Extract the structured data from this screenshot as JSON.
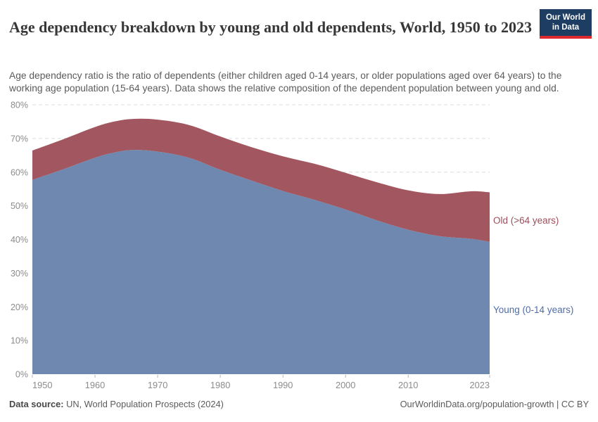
{
  "header": {
    "title": "Age dependency breakdown by young and old dependents, World, 1950 to 2023",
    "subtitle": "Age dependency ratio is the ratio of dependents (either children aged 0-14 years, or older populations aged over 64 years) to the working age population (15-64 years). Data shows the relative composition of the dependent population between young and old.",
    "logo": {
      "line1": "Our World",
      "line2": "in Data"
    }
  },
  "footer": {
    "source_label": "Data source:",
    "source_text": " UN, World Population Prospects (2024)",
    "rights": "OurWorldinData.org/population-growth | CC BY"
  },
  "chart_data": {
    "type": "area",
    "stacked": true,
    "x": [
      1950,
      1955,
      1960,
      1963,
      1966,
      1970,
      1975,
      1980,
      1985,
      1990,
      1995,
      2000,
      2005,
      2010,
      2015,
      2020,
      2023
    ],
    "series": [
      {
        "name": "Young (0-14 years)",
        "color": "#6e88b0",
        "label_color": "#4f6cab",
        "values": [
          57.7,
          60.9,
          64.3,
          65.8,
          66.6,
          66.1,
          64.3,
          60.7,
          57.5,
          54.4,
          51.8,
          48.9,
          45.7,
          42.9,
          41.0,
          40.2,
          39.3
        ]
      },
      {
        "name": "Old (>64 years)",
        "color": "#a2565f",
        "label_color": "#9c4f5c",
        "values": [
          8.7,
          8.9,
          9.1,
          9.2,
          9.2,
          9.5,
          9.7,
          9.9,
          9.9,
          10.3,
          10.7,
          10.9,
          11.3,
          11.7,
          12.5,
          14.1,
          14.7
        ]
      }
    ],
    "title": "Age dependency breakdown by young and old dependents, World, 1950 to 2023",
    "xlabel": "",
    "ylabel": "",
    "ylim": [
      0,
      80
    ],
    "yticks": [
      0,
      10,
      20,
      30,
      40,
      50,
      60,
      70,
      80
    ],
    "ytick_format": "{}%",
    "xticks": [
      1950,
      1960,
      1970,
      1980,
      1990,
      2000,
      2010,
      2023
    ],
    "grid": "horizontal-dashed",
    "legend_position": "right-edge-labels",
    "colors": {
      "gridline": "#dcdcdc",
      "tick_label": "#8c8c8c",
      "tick_mark": "#b3b3b3"
    }
  }
}
